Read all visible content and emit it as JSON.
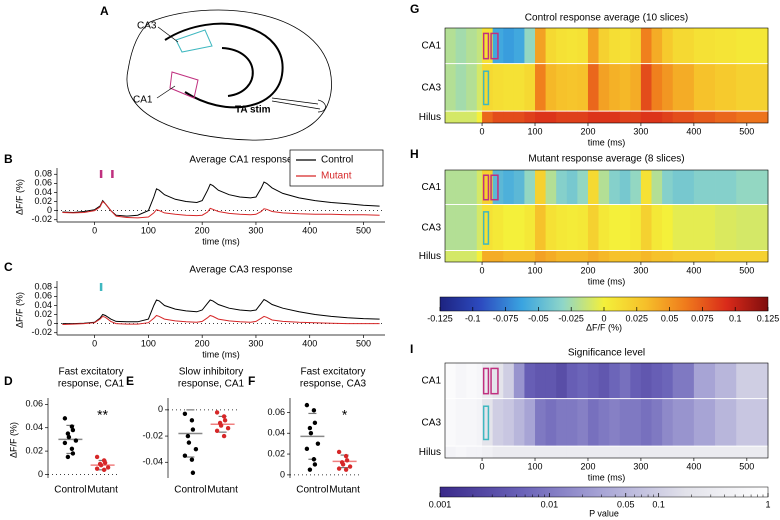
{
  "diagram": {
    "panel": "A",
    "labels": [
      "CA3",
      "CA1",
      "TA stim"
    ]
  },
  "chart_data": [
    {
      "type": "line",
      "panel": "B",
      "title": "Average CA1 response",
      "xlabel": "time (ms)",
      "ylabel": "ΔF/F (%)",
      "x": [
        -60,
        -40,
        -20,
        0,
        10,
        15,
        20,
        30,
        40,
        60,
        80,
        100,
        110,
        115,
        120,
        130,
        150,
        170,
        190,
        200,
        210,
        215,
        220,
        230,
        250,
        270,
        290,
        300,
        310,
        315,
        320,
        330,
        350,
        380,
        410,
        440,
        470,
        500,
        530
      ],
      "series": [
        {
          "name": "Control",
          "color": "#000000",
          "values": [
            -0.003,
            -0.004,
            -0.002,
            0.002,
            0.01,
            0.022,
            0.015,
            0,
            -0.01,
            -0.012,
            -0.01,
            0,
            0.03,
            0.048,
            0.045,
            0.035,
            0.025,
            0.02,
            0.018,
            0.022,
            0.045,
            0.058,
            0.055,
            0.045,
            0.035,
            0.03,
            0.028,
            0.03,
            0.05,
            0.063,
            0.06,
            0.05,
            0.038,
            0.028,
            0.022,
            0.018,
            0.015,
            0.012,
            0.01
          ]
        },
        {
          "name": "Mutant",
          "color": "#d62728",
          "values": [
            -0.004,
            -0.005,
            -0.004,
            0,
            0.008,
            0.02,
            0.015,
            0,
            -0.012,
            -0.015,
            -0.016,
            -0.014,
            -0.005,
            0.002,
            0,
            -0.005,
            -0.008,
            -0.01,
            -0.011,
            -0.01,
            -0.003,
            0.005,
            0.003,
            -0.002,
            -0.006,
            -0.008,
            -0.009,
            -0.008,
            -0.002,
            0.004,
            0.003,
            -0.002,
            -0.005,
            -0.007,
            -0.008,
            -0.008,
            -0.009,
            -0.009,
            -0.01
          ]
        }
      ],
      "xlim": [
        -70,
        540
      ],
      "xticks": [
        0,
        100,
        200,
        300,
        400,
        500
      ],
      "ylim": [
        -0.025,
        0.085
      ],
      "yticks": [
        -0.02,
        0,
        0.02,
        0.04,
        0.06,
        0.08
      ],
      "zero_line": true,
      "legend": "upper right",
      "stim_markers": [
        {
          "x": 12,
          "color": "#c0307f"
        },
        {
          "x": 33,
          "color": "#c0307f"
        }
      ]
    },
    {
      "type": "line",
      "panel": "C",
      "title": "Average CA3 response",
      "xlabel": "time (ms)",
      "ylabel": "ΔF/F (%)",
      "x": [
        -60,
        -40,
        -20,
        0,
        10,
        15,
        20,
        30,
        40,
        60,
        80,
        100,
        110,
        115,
        120,
        130,
        150,
        170,
        190,
        200,
        210,
        215,
        220,
        230,
        250,
        270,
        290,
        300,
        310,
        315,
        320,
        330,
        350,
        380,
        410,
        440,
        470,
        500,
        530
      ],
      "series": [
        {
          "name": "Control",
          "color": "#000000",
          "values": [
            0,
            0,
            0.001,
            0.003,
            0.012,
            0.02,
            0.018,
            0.01,
            0.005,
            0.004,
            0.004,
            0.01,
            0.04,
            0.052,
            0.05,
            0.04,
            0.032,
            0.028,
            0.026,
            0.03,
            0.045,
            0.052,
            0.05,
            0.042,
            0.034,
            0.03,
            0.028,
            0.03,
            0.045,
            0.053,
            0.05,
            0.042,
            0.034,
            0.026,
            0.02,
            0.016,
            0.013,
            0.011,
            0.01
          ]
        },
        {
          "name": "Mutant",
          "color": "#d62728",
          "values": [
            -0.002,
            -0.001,
            0,
            0.002,
            0.01,
            0.016,
            0.014,
            0.005,
            0,
            -0.001,
            -0.001,
            0.002,
            0.012,
            0.018,
            0.016,
            0.01,
            0.006,
            0.004,
            0.003,
            0.005,
            0.013,
            0.018,
            0.016,
            0.01,
            0.006,
            0.004,
            0.003,
            0.005,
            0.012,
            0.016,
            0.014,
            0.008,
            0.005,
            0.003,
            0.002,
            0.001,
            0,
            0,
            0
          ]
        }
      ],
      "xlim": [
        -70,
        540
      ],
      "xticks": [
        0,
        100,
        200,
        300,
        400,
        500
      ],
      "ylim": [
        -0.025,
        0.085
      ],
      "yticks": [
        -0.02,
        0,
        0.02,
        0.04,
        0.06,
        0.08
      ],
      "zero_line": true,
      "stim_markers": [
        {
          "x": 12,
          "color": "#3fb8c0"
        }
      ]
    },
    {
      "type": "dot",
      "panel": "D",
      "title": [
        "Fast excitatory",
        "response, CA1"
      ],
      "ylabel": "ΔF/F (%)",
      "annotation": "**",
      "ylim": [
        -0.003,
        0.062
      ],
      "yticks": [
        0,
        0.02,
        0.04,
        0.06
      ],
      "zero_line": true,
      "groups": [
        {
          "name": "Control",
          "color": "#000000",
          "mean_color": "#888888",
          "values": [
            0.048,
            0.041,
            0.038,
            0.035,
            0.032,
            0.029,
            0.027,
            0.022,
            0.018,
            0.015
          ],
          "mean": 0.03,
          "sd": 0.012
        },
        {
          "name": "Mutant",
          "color": "#d62728",
          "mean_color": "#f08080",
          "values": [
            0.015,
            0.012,
            0.01,
            0.009,
            0.008,
            0.006,
            0.005,
            0.004
          ],
          "mean": 0.008,
          "sd": 0.004
        }
      ]
    },
    {
      "type": "dot",
      "panel": "E",
      "title": [
        "Slow inhibitory",
        "response, CA1"
      ],
      "ylim": [
        -0.052,
        0.006
      ],
      "yticks": [
        -0.04,
        -0.02,
        0
      ],
      "zero_line": true,
      "groups": [
        {
          "name": "Control",
          "color": "#000000",
          "mean_color": "#888888",
          "values": [
            -0.003,
            -0.008,
            -0.015,
            -0.02,
            -0.025,
            -0.03,
            -0.035,
            -0.038,
            -0.048
          ],
          "mean": -0.018,
          "sd": 0.018
        },
        {
          "name": "Mutant",
          "color": "#d62728",
          "mean_color": "#f08080",
          "values": [
            -0.002,
            -0.005,
            -0.008,
            -0.01,
            -0.012,
            -0.014,
            -0.016,
            -0.02
          ],
          "mean": -0.011,
          "sd": 0.006
        }
      ]
    },
    {
      "type": "dot",
      "panel": "F",
      "title": [
        "Fast excitatory",
        "response, CA3"
      ],
      "annotation": "*",
      "ylim": [
        -0.003,
        0.07
      ],
      "yticks": [
        0,
        0.02,
        0.04,
        0.06
      ],
      "zero_line": true,
      "groups": [
        {
          "name": "Control",
          "color": "#000000",
          "mean_color": "#888888",
          "values": [
            0.067,
            0.062,
            0.05,
            0.045,
            0.04,
            0.03,
            0.025,
            0.015,
            0.01,
            0.005
          ],
          "mean": 0.037,
          "sd": 0.022
        },
        {
          "name": "Mutant",
          "color": "#d62728",
          "mean_color": "#f08080",
          "values": [
            0.022,
            0.018,
            0.014,
            0.012,
            0.01,
            0.008,
            0.006,
            0.005
          ],
          "mean": 0.013,
          "sd": 0.006
        }
      ]
    },
    {
      "type": "heatmap",
      "panel": "G",
      "title": "Control response average (10 slices)",
      "xlabel": "time (ms)",
      "xlim": [
        -70,
        540
      ],
      "xticks": [
        0,
        100,
        200,
        300,
        400,
        500
      ],
      "vlim": [
        -0.125,
        0.125
      ],
      "colormap": [
        "#1d2380",
        "#2d4bc0",
        "#3aa4e0",
        "#8fd6c8",
        "#f4f03a",
        "#f6c02a",
        "#ef7a1c",
        "#d92a1a",
        "#7f0d0d"
      ],
      "bins": [
        -70,
        -50,
        -30,
        -10,
        0,
        20,
        40,
        60,
        80,
        100,
        120,
        140,
        160,
        180,
        200,
        220,
        240,
        260,
        280,
        300,
        320,
        340,
        360,
        400,
        440,
        480,
        540
      ],
      "rows": [
        {
          "name": "CA1",
          "values": [
            -0.02,
            -0.025,
            -0.02,
            -0.015,
            0.01,
            -0.06,
            -0.065,
            -0.06,
            -0.03,
            0.045,
            0.015,
            0.01,
            0.008,
            0.01,
            0.045,
            0.02,
            0.012,
            0.01,
            0.015,
            0.06,
            0.04,
            0.025,
            0.015,
            0.01,
            0.008,
            0.005
          ],
          "rois": [
            {
              "x": [
                3,
                12
              ],
              "color": "#c0307f"
            },
            {
              "x": [
                17,
                30
              ],
              "color": "#c0307f"
            }
          ]
        },
        {
          "name": "CA3",
          "values": [
            -0.02,
            -0.025,
            -0.02,
            -0.01,
            0.015,
            0.012,
            0.01,
            0.01,
            0.015,
            0.06,
            0.035,
            0.03,
            0.028,
            0.03,
            0.07,
            0.045,
            0.038,
            0.035,
            0.04,
            0.08,
            0.06,
            0.05,
            0.04,
            0.03,
            0.025,
            0.02
          ],
          "rois": [
            {
              "x": [
                3,
                12
              ],
              "color": "#3fb8c0"
            }
          ]
        },
        {
          "name": "Hilus",
          "values": [
            -0.01,
            -0.01,
            -0.01,
            0,
            0.07,
            0.08,
            0.08,
            0.08,
            0.085,
            0.09,
            0.09,
            0.085,
            0.085,
            0.085,
            0.09,
            0.09,
            0.09,
            0.085,
            0.085,
            0.09,
            0.09,
            0.085,
            0.08,
            0.075,
            0.07,
            0.065
          ]
        }
      ]
    },
    {
      "type": "heatmap",
      "panel": "H",
      "title": "Mutant response average (8 slices)",
      "xlabel": "time (ms)",
      "xlim": [
        -70,
        540
      ],
      "xticks": [
        0,
        100,
        200,
        300,
        400,
        500
      ],
      "vlim": [
        -0.125,
        0.125
      ],
      "colormap": [
        "#1d2380",
        "#2d4bc0",
        "#3aa4e0",
        "#8fd6c8",
        "#f4f03a",
        "#f6c02a",
        "#ef7a1c",
        "#d92a1a",
        "#7f0d0d"
      ],
      "bins": [
        -70,
        -50,
        -30,
        -10,
        0,
        20,
        40,
        60,
        80,
        100,
        120,
        140,
        160,
        180,
        200,
        220,
        240,
        260,
        280,
        300,
        320,
        340,
        360,
        400,
        440,
        480,
        540
      ],
      "rows": [
        {
          "name": "CA1",
          "values": [
            -0.02,
            -0.02,
            -0.02,
            -0.01,
            0.02,
            -0.05,
            -0.055,
            -0.05,
            -0.03,
            0.02,
            -0.02,
            -0.035,
            -0.04,
            -0.03,
            0.015,
            -0.02,
            -0.035,
            -0.04,
            -0.03,
            0.01,
            -0.02,
            -0.035,
            -0.04,
            -0.035,
            -0.035,
            -0.03
          ],
          "rois": [
            {
              "x": [
                3,
                12
              ],
              "color": "#c0307f"
            },
            {
              "x": [
                17,
                30
              ],
              "color": "#c0307f"
            }
          ]
        },
        {
          "name": "CA3",
          "values": [
            -0.02,
            -0.02,
            -0.02,
            -0.01,
            0.01,
            0.005,
            0,
            0,
            0.005,
            0.03,
            0.01,
            0.005,
            0.003,
            0.005,
            0.02,
            0.005,
            0,
            0,
            0.003,
            0.02,
            0.005,
            0,
            -0.005,
            -0.005,
            -0.008,
            -0.01
          ],
          "rois": [
            {
              "x": [
                3,
                12
              ],
              "color": "#3fb8c0"
            }
          ]
        },
        {
          "name": "Hilus",
          "values": [
            -0.01,
            -0.01,
            -0.01,
            0,
            0.04,
            0.04,
            0.035,
            0.035,
            0.035,
            0.045,
            0.04,
            0.035,
            0.035,
            0.035,
            0.04,
            0.035,
            0.03,
            0.03,
            0.03,
            0.035,
            0.03,
            0.03,
            0.025,
            0.025,
            0.02,
            0.02
          ]
        }
      ]
    },
    {
      "type": "colorbar",
      "label": "ΔF/F (%)",
      "vlim": [
        -0.125,
        0.125
      ],
      "colormap": [
        "#1d2380",
        "#2d4bc0",
        "#3aa4e0",
        "#8fd6c8",
        "#f4f03a",
        "#f6c02a",
        "#ef7a1c",
        "#d92a1a",
        "#7f0d0d"
      ],
      "ticks": [
        -0.125,
        -0.1,
        -0.075,
        -0.05,
        -0.025,
        0,
        0.025,
        0.05,
        0.075,
        0.1,
        0.125
      ]
    },
    {
      "type": "heatmap",
      "panel": "I",
      "title": "Significance level",
      "xlabel": "time (ms)",
      "log": true,
      "xlim": [
        -70,
        540
      ],
      "xticks": [
        0,
        100,
        200,
        300,
        400,
        500
      ],
      "vlim": [
        0.001,
        1
      ],
      "colormap": [
        "#3a2a8a",
        "#6a62b8",
        "#a9a6d6",
        "#e2e2ea",
        "#ffffff"
      ],
      "bins": [
        -70,
        -50,
        -30,
        -10,
        0,
        20,
        40,
        60,
        80,
        100,
        120,
        140,
        160,
        180,
        200,
        220,
        240,
        260,
        280,
        300,
        320,
        340,
        360,
        400,
        440,
        480,
        540
      ],
      "rows": [
        {
          "name": "CA1",
          "values": [
            0.8,
            0.6,
            0.7,
            0.6,
            0.3,
            0.2,
            0.1,
            0.02,
            0.005,
            0.004,
            0.004,
            0.003,
            0.005,
            0.006,
            0.005,
            0.004,
            0.006,
            0.008,
            0.005,
            0.004,
            0.005,
            0.006,
            0.01,
            0.03,
            0.05,
            0.1
          ],
          "rois": [
            {
              "x": [
                3,
                12
              ],
              "color": "#c0307f"
            },
            {
              "x": [
                17,
                30
              ],
              "color": "#c0307f"
            }
          ]
        },
        {
          "name": "CA3",
          "values": [
            0.7,
            0.6,
            0.6,
            0.5,
            0.2,
            0.1,
            0.08,
            0.05,
            0.03,
            0.01,
            0.008,
            0.01,
            0.01,
            0.012,
            0.008,
            0.01,
            0.012,
            0.01,
            0.01,
            0.008,
            0.01,
            0.015,
            0.02,
            0.03,
            0.05,
            0.08
          ],
          "rois": [
            {
              "x": [
                3,
                12
              ],
              "color": "#3fb8c0"
            }
          ]
        },
        {
          "name": "Hilus",
          "values": [
            0.5,
            0.6,
            0.5,
            0.5,
            0.4,
            0.3,
            0.3,
            0.3,
            0.3,
            0.3,
            0.3,
            0.3,
            0.3,
            0.3,
            0.3,
            0.3,
            0.3,
            0.3,
            0.3,
            0.3,
            0.3,
            0.3,
            0.3,
            0.3,
            0.3,
            0.3
          ]
        }
      ]
    },
    {
      "type": "colorbar",
      "label": "P value",
      "log": true,
      "vlim": [
        0.001,
        1
      ],
      "colormap": [
        "#3a2a8a",
        "#6a62b8",
        "#a9a6d6",
        "#e2e2ea",
        "#ffffff"
      ],
      "ticks": [
        0.001,
        0.01,
        0.05,
        0.1,
        1
      ],
      "minor_ticks": [
        0.002,
        0.003,
        0.004,
        0.005,
        0.006,
        0.007,
        0.008,
        0.009,
        0.02,
        0.03,
        0.04,
        0.06,
        0.07,
        0.08,
        0.09,
        0.2,
        0.3,
        0.4,
        0.5,
        0.6,
        0.7,
        0.8,
        0.9
      ]
    }
  ]
}
